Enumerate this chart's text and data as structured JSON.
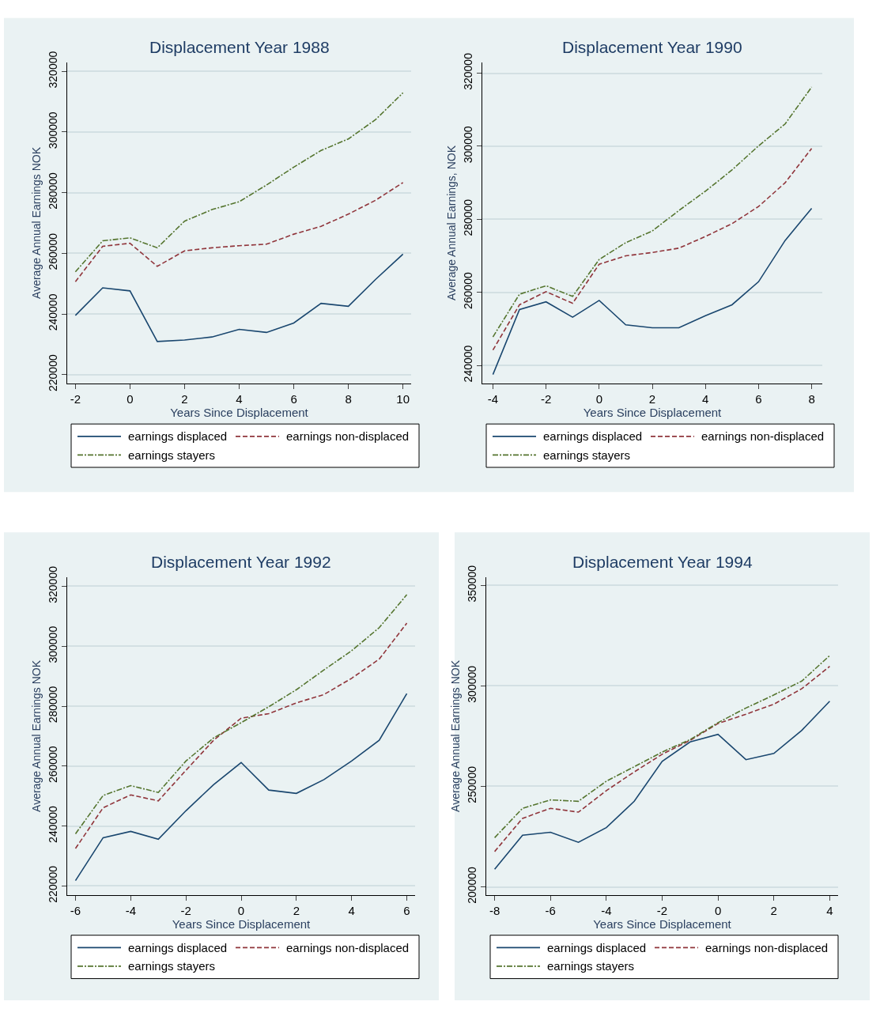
{
  "chart_data": [
    {
      "type": "line",
      "title": "Displacement Year 1988",
      "xlabel": "Years Since Displacement",
      "ylabel": "Average Annual Earnings NOK",
      "x": [
        -2,
        -1,
        0,
        1,
        2,
        3,
        4,
        5,
        6,
        7,
        8,
        9,
        10
      ],
      "xlim": [
        -2.3,
        10.3
      ],
      "xticks": [
        -2,
        0,
        2,
        4,
        6,
        8,
        10
      ],
      "ylim": [
        217000,
        323000
      ],
      "yticks": [
        220000,
        240000,
        260000,
        280000,
        300000,
        320000
      ],
      "grid": "y",
      "legend": "bottom",
      "series": [
        {
          "name": "earnings displaced",
          "color": "#1a476f",
          "line_style": "solid",
          "values": [
            239500,
            248600,
            247600,
            230900,
            231400,
            232400,
            234900,
            233900,
            237000,
            243500,
            242500,
            251400,
            259700
          ]
        },
        {
          "name": "earnings non-displaced",
          "color": "#90353b",
          "line_style": "dashed",
          "values": [
            250600,
            262300,
            263300,
            255700,
            260800,
            261800,
            262500,
            263000,
            266300,
            268900,
            272900,
            277500,
            283300
          ]
        },
        {
          "name": "earnings stayers",
          "color": "#55752f",
          "line_style": "dashdot",
          "values": [
            253900,
            264100,
            265100,
            261800,
            270600,
            274400,
            277000,
            282500,
            288400,
            293900,
            297700,
            304100,
            312900
          ]
        }
      ]
    },
    {
      "type": "line",
      "title": "Displacement Year 1990",
      "xlabel": "Years Since Displacement",
      "ylabel": "Average Annual Earnings, NOK",
      "x": [
        -4,
        -3,
        -2,
        -1,
        0,
        1,
        2,
        3,
        4,
        5,
        6,
        7,
        8
      ],
      "xlim": [
        -4.4,
        8.4
      ],
      "xticks": [
        -4,
        -2,
        0,
        2,
        4,
        6,
        8
      ],
      "ylim": [
        235000,
        323000
      ],
      "yticks": [
        240000,
        260000,
        280000,
        300000,
        320000
      ],
      "grid": "y",
      "legend": "bottom",
      "series": [
        {
          "name": "earnings displaced",
          "color": "#1a476f",
          "line_style": "solid",
          "values": [
            237500,
            255300,
            257400,
            253200,
            257800,
            251100,
            250300,
            250300,
            253600,
            256600,
            262900,
            274200,
            283000
          ]
        },
        {
          "name": "earnings non-displaced",
          "color": "#90353b",
          "line_style": "dashed",
          "values": [
            244200,
            256600,
            260200,
            257000,
            267700,
            270000,
            270900,
            272100,
            275300,
            278800,
            283500,
            290000,
            299400
          ]
        },
        {
          "name": "earnings stayers",
          "color": "#55752f",
          "line_style": "dashdot",
          "values": [
            247800,
            259500,
            261800,
            258900,
            269000,
            273600,
            276800,
            282400,
            287700,
            293500,
            300100,
            306100,
            316200
          ]
        }
      ]
    },
    {
      "type": "line",
      "title": "Displacement Year 1992",
      "xlabel": "Years Since Displacement",
      "ylabel": "Average Annual Earnings NOK",
      "x": [
        -6,
        -5,
        -4,
        -3,
        -2,
        -1,
        0,
        1,
        2,
        3,
        4,
        5,
        6
      ],
      "xlim": [
        -6.3,
        6.3
      ],
      "xticks": [
        -6,
        -4,
        -2,
        0,
        2,
        4,
        6
      ],
      "ylim": [
        217000,
        323000
      ],
      "yticks": [
        220000,
        240000,
        260000,
        280000,
        300000,
        320000
      ],
      "grid": "y",
      "legend": "bottom",
      "series": [
        {
          "name": "earnings displaced",
          "color": "#1a476f",
          "line_style": "solid",
          "values": [
            221800,
            236100,
            238200,
            235600,
            245100,
            253800,
            261200,
            252000,
            250900,
            255500,
            261700,
            268600,
            284200
          ]
        },
        {
          "name": "earnings non-displaced",
          "color": "#90353b",
          "line_style": "dashed",
          "values": [
            232500,
            246100,
            250400,
            248400,
            258600,
            268600,
            276000,
            277500,
            281100,
            283900,
            289300,
            295700,
            307700
          ]
        },
        {
          "name": "earnings stayers",
          "color": "#55752f",
          "line_style": "dashdot",
          "values": [
            237400,
            250200,
            253500,
            251200,
            261700,
            269400,
            274500,
            279800,
            285500,
            292100,
            298500,
            306200,
            317200
          ]
        }
      ]
    },
    {
      "type": "line",
      "title": "Displacement Year 1994",
      "xlabel": "Years Since Displacement",
      "ylabel": "Average Annual Earnings NOK",
      "x": [
        -8,
        -7,
        -6,
        -5,
        -4,
        -3,
        -2,
        -1,
        0,
        1,
        2,
        3,
        4
      ],
      "xlim": [
        -8.3,
        4.3
      ],
      "xticks": [
        -8,
        -6,
        -4,
        -2,
        0,
        2,
        4
      ],
      "ylim": [
        196000,
        354000
      ],
      "yticks": [
        200000,
        250000,
        300000,
        350000
      ],
      "grid": "y",
      "legend": "bottom",
      "series": [
        {
          "name": "earnings displaced",
          "color": "#1a476f",
          "line_style": "solid",
          "values": [
            208800,
            225700,
            227200,
            222200,
            229500,
            242600,
            262500,
            272100,
            275900,
            263300,
            266400,
            277900,
            292400
          ]
        },
        {
          "name": "earnings non-displaced",
          "color": "#90353b",
          "line_style": "dashed",
          "values": [
            217600,
            234100,
            239100,
            237200,
            247900,
            257200,
            266000,
            272900,
            281300,
            285900,
            290900,
            298600,
            309700
          ]
        },
        {
          "name": "earnings stayers",
          "color": "#55752f",
          "line_style": "dashdot",
          "values": [
            224500,
            239100,
            243300,
            242600,
            252600,
            259800,
            267100,
            273300,
            281700,
            289000,
            295500,
            302400,
            315100
          ]
        }
      ]
    }
  ]
}
